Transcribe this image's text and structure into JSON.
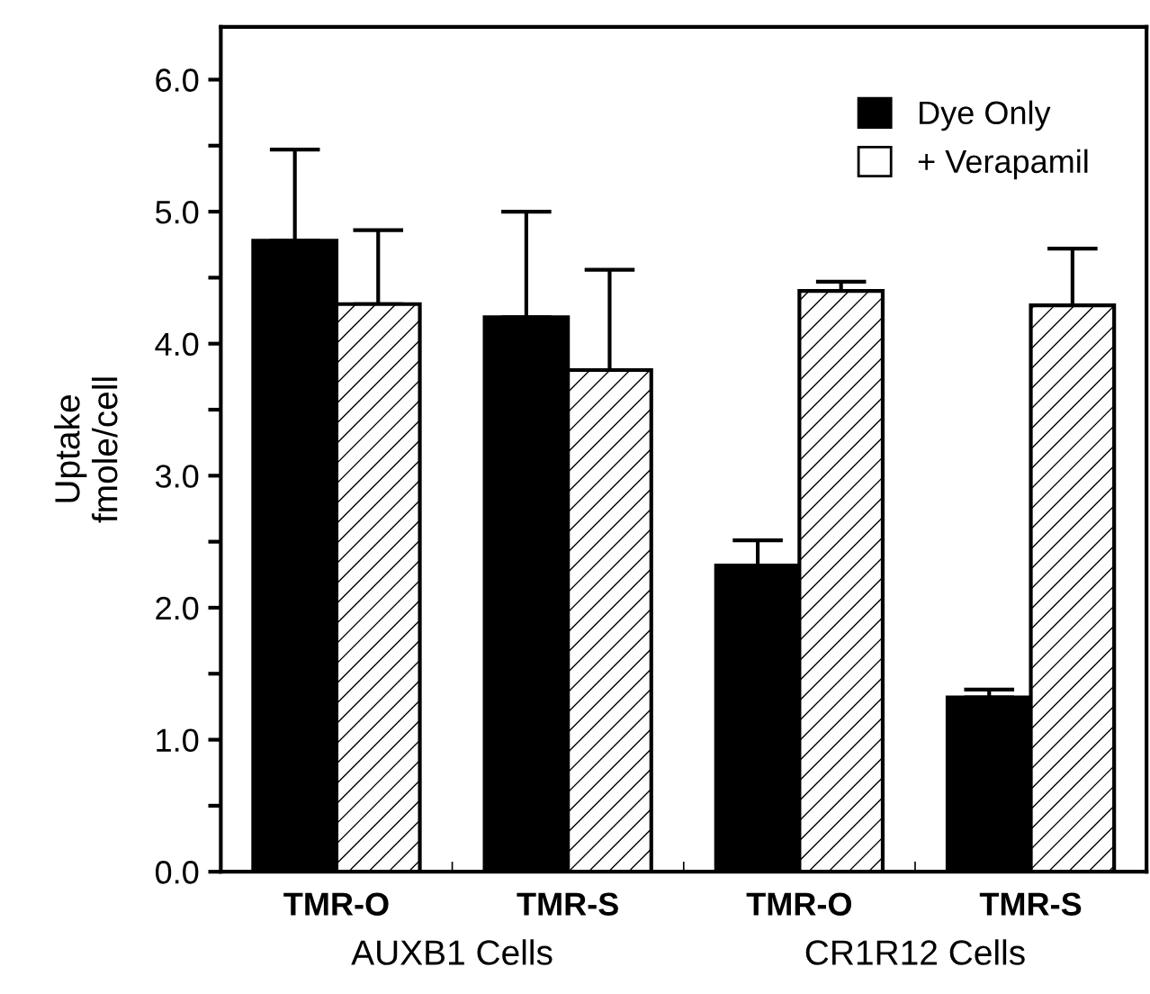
{
  "chart_data": {
    "type": "bar",
    "ylabel": "Uptake\nfmole/cell",
    "categories": [
      "TMR-O",
      "TMR-S",
      "TMR-O",
      "TMR-S"
    ],
    "series": [
      {
        "name": "Dye Only",
        "color": "#000000",
        "values": [
          4.78,
          4.2,
          2.32,
          1.32
        ],
        "errors": [
          [
            4.78,
            5.47
          ],
          [
            4.2,
            5.0
          ],
          [
            2.32,
            2.51
          ],
          [
            1.32,
            1.38
          ]
        ]
      },
      {
        "name": "+ Verapamil",
        "color": "#ffffff",
        "values": [
          4.3,
          3.8,
          4.4,
          4.29
        ],
        "errors": [
          [
            4.3,
            4.86
          ],
          [
            3.8,
            4.56
          ],
          [
            4.4,
            4.47
          ],
          [
            4.29,
            4.72
          ]
        ]
      }
    ],
    "annotations": [
      "AUXB1 Cells",
      "CR1R12 Cells"
    ],
    "ylim": [
      0,
      6.4
    ],
    "yticks": [
      {
        "value": 0,
        "label": "0.0"
      },
      {
        "value": 0.5,
        "label": null
      },
      {
        "value": 1.0,
        "label": "1.0"
      },
      {
        "value": 1.5,
        "label": null
      },
      {
        "value": 2.0,
        "label": "2.0"
      },
      {
        "value": 2.5,
        "label": null
      },
      {
        "value": 3.0,
        "label": "3.0"
      },
      {
        "value": 3.5,
        "label": null
      },
      {
        "value": 4.0,
        "label": "4.0"
      },
      {
        "value": 4.5,
        "label": null
      },
      {
        "value": 5.0,
        "label": "5.0"
      },
      {
        "value": 5.5,
        "label": null
      },
      {
        "value": 6.0,
        "label": "6.0"
      }
    ],
    "legend": "top right",
    "grid": false
  }
}
